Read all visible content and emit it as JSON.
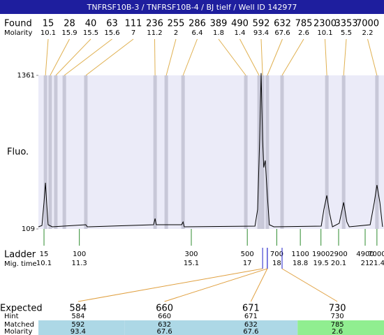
{
  "chart_data": {
    "type": "electropherogram",
    "title": "TNFRSF10B-3 / TNFRSF10B-4 / BJ tielf / Well ID 142977",
    "found": {
      "label": "Found",
      "molarity_label": "Molarity",
      "sizes": [
        15,
        28,
        40,
        63,
        111,
        236,
        255,
        286,
        389,
        490,
        592,
        632,
        785,
        2300,
        3353,
        7000
      ],
      "molarity": [
        10.1,
        15.9,
        15.5,
        15.6,
        7,
        11.2,
        2,
        6.4,
        1.8,
        1.4,
        93.4,
        67.6,
        2.6,
        10.1,
        5.5,
        2.2
      ],
      "migration_times": [
        10.15,
        10.31,
        10.5,
        10.79,
        11.52,
        13.87,
        14.25,
        14.82,
        16.95,
        17.4,
        17.52,
        17.68,
        18.18,
        19.7,
        20.27,
        21.4
      ]
    },
    "y_label": "Fluo.",
    "ylim": [
      109,
      1361
    ],
    "yticks": [
      1361,
      109
    ],
    "xlim": [
      9.91,
      21.64
    ],
    "trace": {
      "x": [
        9.91,
        10.03,
        10.1,
        10.15,
        10.19,
        10.24,
        10.38,
        11.52,
        11.57,
        13.82,
        13.87,
        13.91,
        14.77,
        14.82,
        14.86,
        17.26,
        17.35,
        17.42,
        17.47,
        17.52,
        17.56,
        17.61,
        17.68,
        17.75,
        17.9,
        19.51,
        19.6,
        19.7,
        19.79,
        19.89,
        20.12,
        20.27,
        20.38,
        20.46,
        21.17,
        21.31,
        21.4,
        21.5,
        21.59
      ],
      "y": [
        126,
        137,
        325,
        485,
        325,
        143,
        126,
        143,
        126,
        143,
        194,
        143,
        143,
        166,
        126,
        132,
        268,
        837,
        1380,
        837,
        610,
        667,
        382,
        143,
        126,
        132,
        268,
        382,
        240,
        126,
        155,
        325,
        166,
        126,
        143,
        325,
        467,
        325,
        126
      ]
    },
    "ladder": {
      "label": "Ladder",
      "time_label": "Mig. time",
      "sizes": [
        15,
        100,
        300,
        500,
        700,
        1100,
        1900,
        2900,
        4900,
        7000
      ],
      "times": [
        10.1,
        11.3,
        15.1,
        17,
        18,
        18.8,
        19.5,
        20.1,
        21,
        21.4
      ]
    },
    "table": {
      "row_labels": [
        "Expected",
        "Hint",
        "Matched",
        "Molarity"
      ],
      "expected": [
        584,
        660,
        671,
        730
      ],
      "hint": [
        584,
        660,
        671,
        730
      ],
      "matched": [
        592,
        632,
        632,
        785
      ],
      "molarity": [
        93.4,
        67.6,
        67.6,
        2.6
      ],
      "matched_times": [
        17.52,
        17.68,
        17.68,
        18.18
      ],
      "colors": [
        "#add8e6",
        "#add8e6",
        "#add8e6",
        "#90ee90"
      ]
    }
  }
}
